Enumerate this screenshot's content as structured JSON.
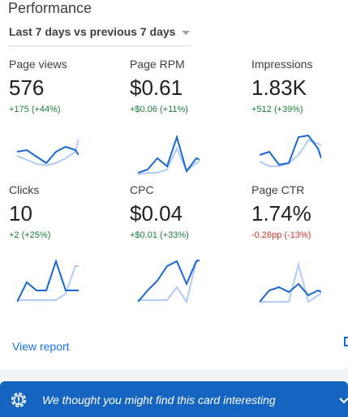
{
  "card": {
    "title": "Performance",
    "period": "Last 7 days vs previous 7 days",
    "view_report": "View report"
  },
  "metrics": [
    {
      "label": "Page views",
      "value": "576",
      "change": "+175 (+44%)",
      "trend": "positive"
    },
    {
      "label": "Page RPM",
      "value": "$0.61",
      "change": "+$0.06 (+11%)",
      "trend": "positive"
    },
    {
      "label": "Impressions",
      "value": "1.83K",
      "change": "+512 (+39%)",
      "trend": "positive"
    },
    {
      "label": "Clicks",
      "value": "10",
      "change": "+2 (+25%)",
      "trend": "positive"
    },
    {
      "label": "CPC",
      "value": "$0.04",
      "change": "+$0.01 (+33%)",
      "trend": "positive"
    },
    {
      "label": "Page CTR",
      "value": "1.74%",
      "change": "-0.26pp (-13%)",
      "trend": "negative"
    }
  ],
  "banner": {
    "text": "We thought you might find this card interesting"
  },
  "colors": {
    "current_line": "#1967d2",
    "previous_line": "#aecbfa",
    "positive": "#188038",
    "negative": "#d93025",
    "banner_bg": "#1565c0",
    "link": "#1a73e8"
  },
  "icons": [
    "chevron-down-icon",
    "lightbulb-gear-icon",
    "expand-chevron-icon"
  ]
}
